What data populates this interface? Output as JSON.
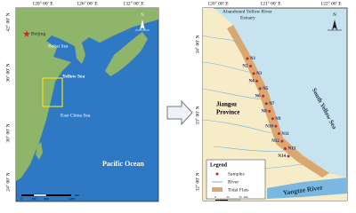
{
  "left_map": {
    "longitudes": [
      "120° 00′ E",
      "126° 00′ E",
      "132° 00′ E"
    ],
    "latitudes": [
      "42° 00′ N",
      "36° 00′ N",
      "30° 00′ N",
      "24° 00′ N"
    ],
    "places": {
      "city": "Beijing",
      "bohai": "Bohai Sea",
      "yellow": "Yellow Sea",
      "east": "East China Sea",
      "pacific": "Pacific Ocean"
    },
    "scale": [
      "0",
      "300",
      "600",
      "1,200"
    ],
    "scale_unit": "Km",
    "north": "N"
  },
  "right_map": {
    "longitudes": [
      "120° 00′ E",
      "121° 00′ E",
      "122° 00′ E"
    ],
    "latitudes": [
      "34° 00′ N",
      "33° 00′ N",
      "32° 00′ N"
    ],
    "places": {
      "estuary": "Abandoned Yellow River",
      "estuary2": "Estuary",
      "province": "Jiangsu",
      "province2": "Province",
      "sea": "South Yellow Sea",
      "river": "Yangtze River"
    },
    "samples": [
      "N1",
      "N2",
      "N3",
      "N4",
      "N5",
      "N6",
      "N7",
      "N8",
      "N9",
      "N10",
      "N11",
      "N12",
      "N13",
      "N14"
    ],
    "legend": {
      "title": "Legend",
      "items": [
        "Samples",
        "River",
        "Tidal Flats"
      ]
    },
    "scale": [
      "0",
      "25",
      "50"
    ],
    "scale_unit": "Km",
    "north": "N"
  }
}
